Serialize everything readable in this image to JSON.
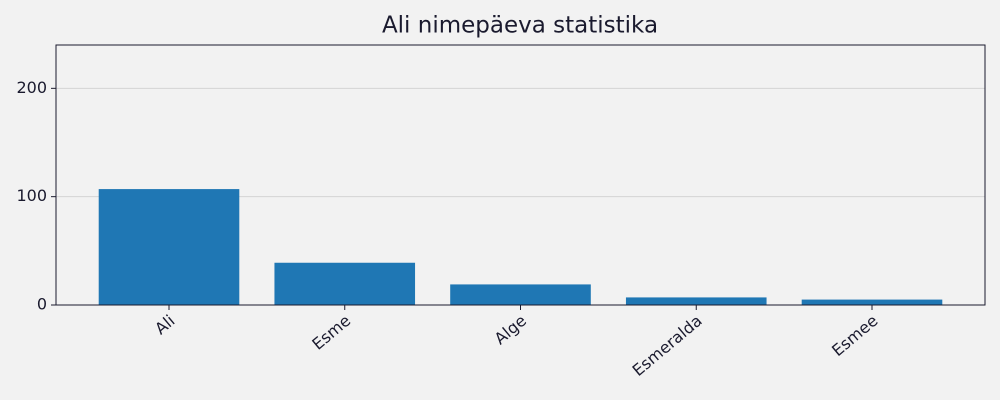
{
  "chart_data": {
    "type": "bar",
    "title": "Ali nimepäeva statistika",
    "categories": [
      "Ali",
      "Esme",
      "Alge",
      "Esmeralda",
      "Esmee"
    ],
    "values": [
      107,
      39,
      19,
      7,
      5
    ],
    "color": "#1f77b4",
    "ylim": [
      0,
      240
    ],
    "yticks": [
      0,
      100,
      200
    ],
    "grid": true
  }
}
